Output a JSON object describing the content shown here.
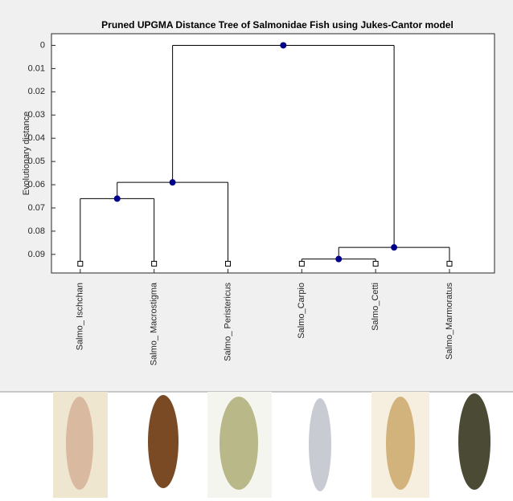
{
  "chart_data": {
    "type": "dendrogram",
    "title": "Pruned UPGMA Distance Tree of Salmonidae Fish using Jukes-Cantor model",
    "y_label": "Evolutionary distance",
    "ylim": [
      -0.005,
      0.098
    ],
    "y_inverted": true,
    "yticks": [
      0,
      0.01,
      0.02,
      0.03,
      0.04,
      0.05,
      0.06,
      0.07,
      0.08,
      0.09
    ],
    "node_color": "#00008b",
    "line_color": "#000000",
    "tree": {
      "height": 0,
      "children": [
        {
          "height": 0.059,
          "children": [
            {
              "height": 0.066,
              "children": [
                {
                  "name": "Salmo_ Ischchan",
                  "height": 0.094
                },
                {
                  "name": "Salmo_ Macrostigma",
                  "height": 0.094
                }
              ]
            },
            {
              "name": "Salmo_ Peristericus",
              "height": 0.094
            }
          ]
        },
        {
          "height": 0.087,
          "children": [
            {
              "height": 0.092,
              "children": [
                {
                  "name": "Salmo_Carpio",
                  "height": 0.094
                },
                {
                  "name": "Salmo_Cetti",
                  "height": 0.094
                }
              ]
            },
            {
              "name": "Salmo_Marmoratus",
              "height": 0.094
            }
          ]
        }
      ]
    }
  }
}
